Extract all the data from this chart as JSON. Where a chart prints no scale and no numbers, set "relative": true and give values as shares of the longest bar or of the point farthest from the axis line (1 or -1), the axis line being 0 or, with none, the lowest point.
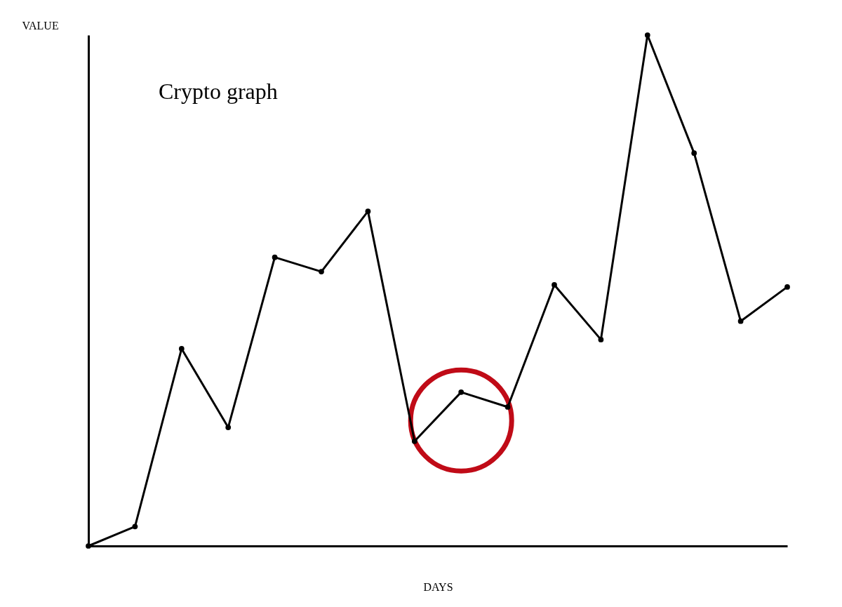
{
  "chart_data": {
    "type": "line",
    "title": "Crypto graph",
    "xlabel": "DAYS",
    "ylabel": "VALUE",
    "relative": true,
    "marker": "circle",
    "grid": false,
    "legend": false,
    "categories": [
      null,
      null,
      null,
      null,
      null,
      null,
      null,
      null,
      null,
      null,
      null,
      null,
      null,
      null,
      null,
      null
    ],
    "series": [
      {
        "color": "#000000",
        "values": [
          0,
          0.038,
          0.386,
          0.232,
          0.565,
          0.537,
          0.655,
          0.205,
          0.301,
          0.272,
          0.511,
          0.404,
          1,
          0.769,
          0.44,
          0.507
        ]
      }
    ]
  }
}
